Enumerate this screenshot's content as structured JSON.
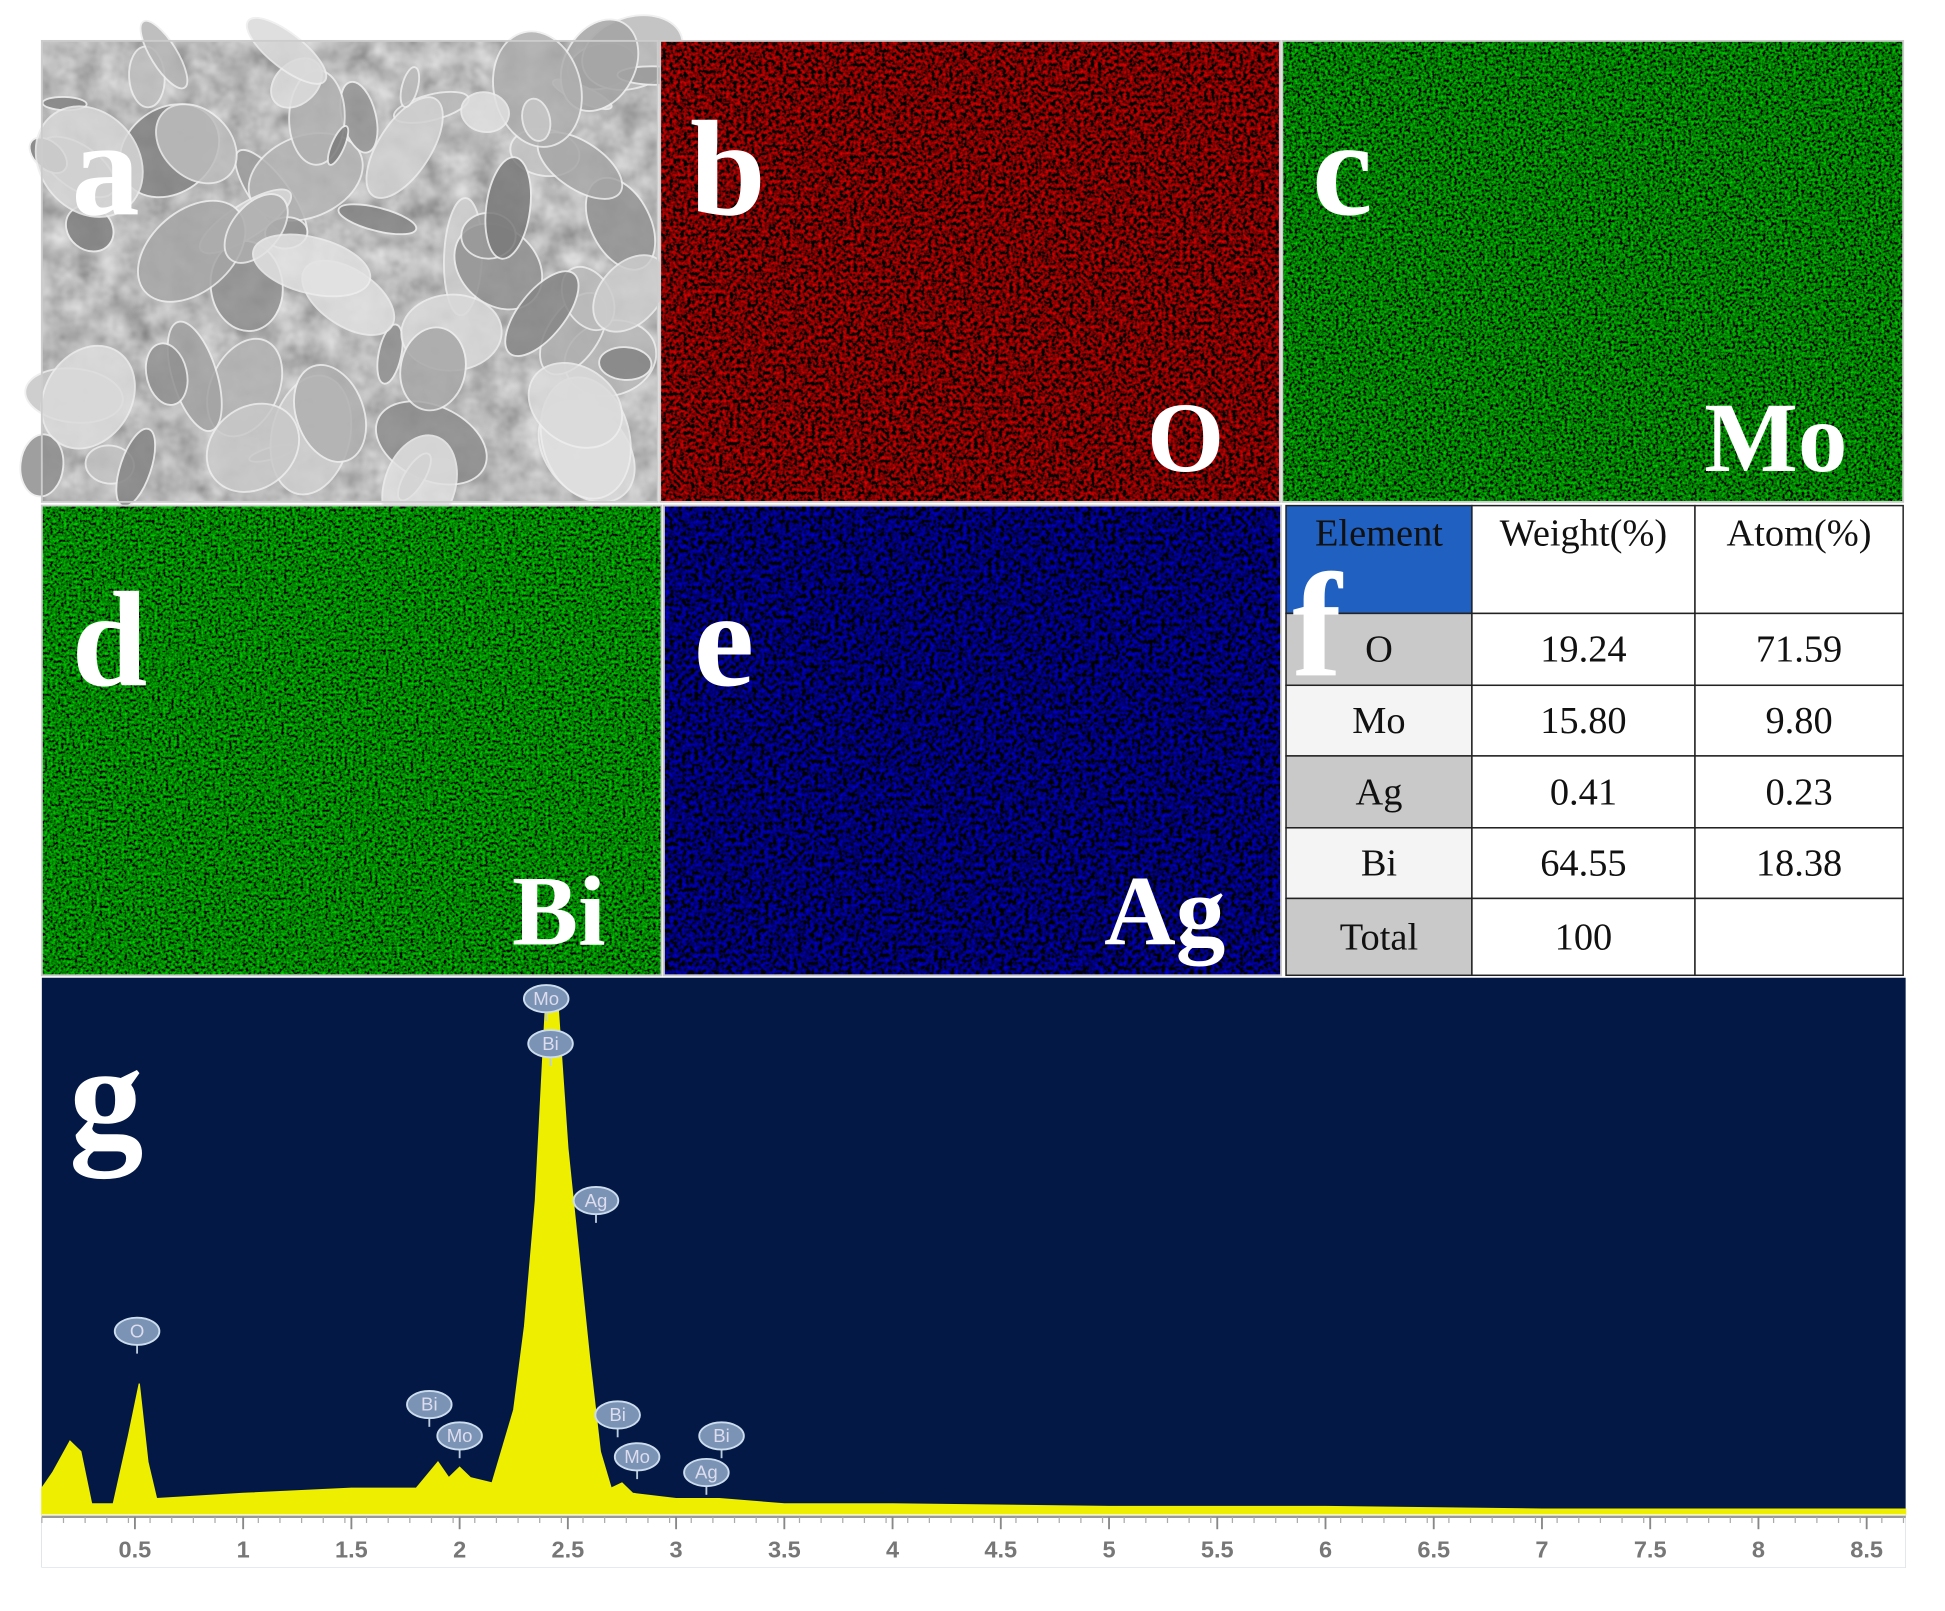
{
  "panels": [
    {
      "letter": "a"
    },
    {
      "letter": "b",
      "element": "O"
    },
    {
      "letter": "c",
      "element": "Mo"
    },
    {
      "letter": "d",
      "element": "Bi"
    },
    {
      "letter": "e",
      "element": "Ag"
    }
  ],
  "table": {
    "letter": "f",
    "header": [
      "Element",
      "Weight(%)",
      "Atom(%)"
    ],
    "rows": [
      [
        "O",
        "19.24",
        "71.59"
      ],
      [
        "Mo",
        "15.80",
        "9.80"
      ],
      [
        "Ag",
        "0.41",
        "0.23"
      ],
      [
        "Bi",
        "64.55",
        "18.38"
      ],
      [
        "Total",
        "100"
      ]
    ]
  },
  "chart_data": {
    "type": "area",
    "letter": "g",
    "color": "#eeee00",
    "x": [
      0.07,
      0.12,
      0.2,
      0.25,
      0.3,
      0.4,
      0.47,
      0.52,
      0.56,
      0.6,
      1.0,
      1.5,
      1.8,
      1.9,
      1.95,
      2.0,
      2.05,
      2.15,
      2.25,
      2.3,
      2.35,
      2.4,
      2.45,
      2.5,
      2.55,
      2.6,
      2.65,
      2.7,
      2.75,
      2.8,
      3.0,
      3.2,
      3.5,
      4.0,
      5.0,
      6.0,
      7.0,
      8.0,
      8.68
    ],
    "values": [
      5,
      8,
      14,
      12,
      2,
      2,
      15,
      25,
      10,
      3,
      4,
      5,
      5,
      10,
      7,
      9,
      7,
      6,
      20,
      36,
      60,
      100,
      100,
      70,
      50,
      30,
      12,
      5,
      6,
      4,
      3,
      3,
      2,
      2,
      1.5,
      1.5,
      1,
      1,
      1
    ],
    "xlim": [
      0.07,
      8.68
    ],
    "ylim": [
      0,
      100
    ],
    "xticks": [
      0.5,
      1,
      1.5,
      2,
      2.5,
      3,
      3.5,
      4,
      4.5,
      5,
      5.5,
      6,
      6.5,
      7,
      7.5,
      8,
      8.5
    ],
    "annotations": [
      {
        "text": "Mo",
        "x": 2.4,
        "y": 98.6
      },
      {
        "text": "Bi",
        "x": 2.42,
        "y": 90
      },
      {
        "text": "Ag",
        "x": 2.63,
        "y": 60
      },
      {
        "text": "O",
        "x": 0.51,
        "y": 35
      },
      {
        "text": "Bi",
        "x": 1.86,
        "y": 21
      },
      {
        "text": "Mo",
        "x": 2.0,
        "y": 15
      },
      {
        "text": "Bi",
        "x": 2.73,
        "y": 19
      },
      {
        "text": "Mo",
        "x": 2.82,
        "y": 11
      },
      {
        "text": "Ag",
        "x": 3.14,
        "y": 8
      },
      {
        "text": "Bi",
        "x": 3.21,
        "y": 15
      }
    ]
  }
}
